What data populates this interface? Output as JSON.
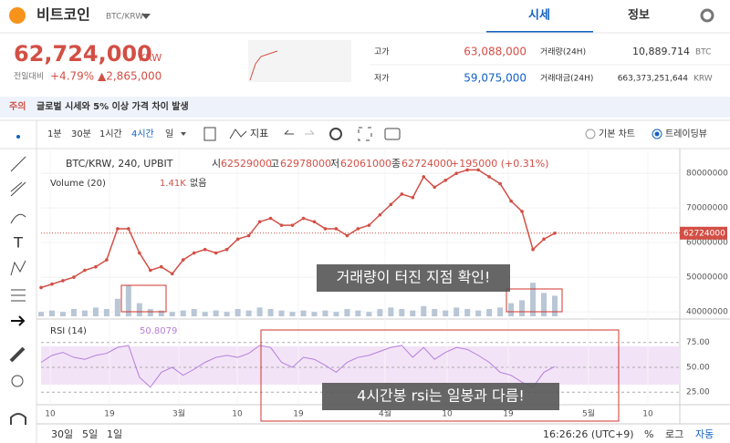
{
  "header": {
    "coin": "비트코인",
    "pair": "BTC/KRW",
    "tabs": [
      "시세",
      "정보"
    ]
  },
  "price": {
    "value": "62,724,000",
    "unit": "KRW",
    "change_label": "전일대비",
    "change_pct": "+4.79%",
    "change_abs": "▲2,865,000"
  },
  "stats": {
    "high_label": "고가",
    "high": "63,088,000",
    "low_label": "저가",
    "low": "59,075,000",
    "volume_label": "거래량(24H)",
    "volume": "10,889.714",
    "volume_unit": "BTC",
    "amount_label": "거래대금(24H)",
    "amount": "663,373,251,644",
    "amount_unit": "KRW"
  },
  "notice": {
    "tag": "주의",
    "text": "글로벌 시세와 5% 이상 가격 차이 발생"
  },
  "toolbar": {
    "intervals": [
      "1분",
      "30분",
      "1시간",
      "4시간",
      "일"
    ],
    "indicator": "지표",
    "options": [
      "기본 차트",
      "트레이딩뷰"
    ]
  },
  "legend": {
    "symbol": "BTC/KRW, 240, UPBIT",
    "open_label": "시",
    "open": "62529000",
    "high_label": "고",
    "high": "62978000",
    "low_label": "저",
    "low": "62061000",
    "close_label": "종",
    "close": "62724000",
    "change": "+195000 (+0.31%)",
    "volume_name": "Volume (20)",
    "volume_value": "1.41K",
    "volume_note": "없음",
    "rsi_name": "RSI (14)",
    "rsi_value": "50.8079"
  },
  "annotations": [
    "거래량이 터진 지점 확인!",
    "4시간봉 rsi는 일봉과 다름!"
  ],
  "x_labels": [
    "10",
    "19",
    "3월",
    "10",
    "19",
    "4월",
    "10",
    "19",
    "5월",
    "10"
  ],
  "bottom": {
    "ranges": [
      "30일",
      "5일",
      "1일"
    ],
    "time": "16:26:26 (UTC+9)",
    "options": [
      "%",
      "로그",
      "자동"
    ]
  },
  "chart_data": {
    "type": "line",
    "color": "#d24f45",
    "values": [
      47000000,
      48000000,
      49000000,
      50000000,
      52000000,
      53000000,
      55000000,
      64000000,
      64000000,
      57000000,
      52000000,
      53000000,
      51000000,
      55000000,
      57000000,
      58000000,
      57000000,
      58000000,
      61000000,
      62000000,
      66000000,
      67000000,
      65000000,
      65000000,
      67000000,
      66000000,
      64000000,
      64000000,
      62000000,
      64000000,
      65000000,
      68000000,
      71000000,
      74000000,
      73000000,
      79000000,
      76000000,
      78000000,
      80000000,
      81000000,
      81000000,
      79000000,
      77000000,
      72000000,
      69000000,
      58000000,
      61000000,
      62724000
    ],
    "ylim": [
      38700000,
      84000000
    ],
    "yticks": [
      40000000,
      50000000,
      60000000,
      70000000,
      80000000
    ],
    "last_label": "62724000",
    "volume_color": "#b9c6d6",
    "volume_values": [
      0.3,
      0.4,
      0.3,
      0.5,
      0.4,
      0.6,
      0.5,
      1.2,
      2.1,
      0.9,
      0.5,
      0.4,
      0.3,
      0.4,
      0.5,
      0.3,
      0.4,
      0.3,
      0.5,
      0.4,
      0.6,
      0.5,
      0.4,
      0.3,
      0.4,
      0.3,
      0.4,
      0.3,
      0.5,
      0.4,
      0.3,
      0.5,
      0.6,
      0.5,
      0.4,
      0.7,
      0.5,
      0.4,
      0.6,
      0.5,
      0.4,
      0.5,
      0.6,
      0.9,
      1.1,
      2.3,
      1.6,
      1.41
    ],
    "rsi_color": "#b57edc",
    "rsi_values": [
      55,
      62,
      65,
      60,
      58,
      62,
      64,
      70,
      72,
      40,
      30,
      45,
      50,
      42,
      48,
      55,
      60,
      62,
      60,
      64,
      72,
      70,
      55,
      50,
      60,
      58,
      52,
      45,
      55,
      60,
      62,
      66,
      70,
      72,
      60,
      70,
      58,
      65,
      70,
      68,
      62,
      55,
      45,
      42,
      35,
      30,
      45,
      50.8079
    ],
    "rsi_ylim": [
      16,
      94
    ],
    "rsi_yticks": [
      {
        "value": 25,
        "label": "25.00"
      },
      {
        "value": 50,
        "label": "50.00"
      },
      {
        "value": 75,
        "label": "75.00"
      }
    ]
  }
}
